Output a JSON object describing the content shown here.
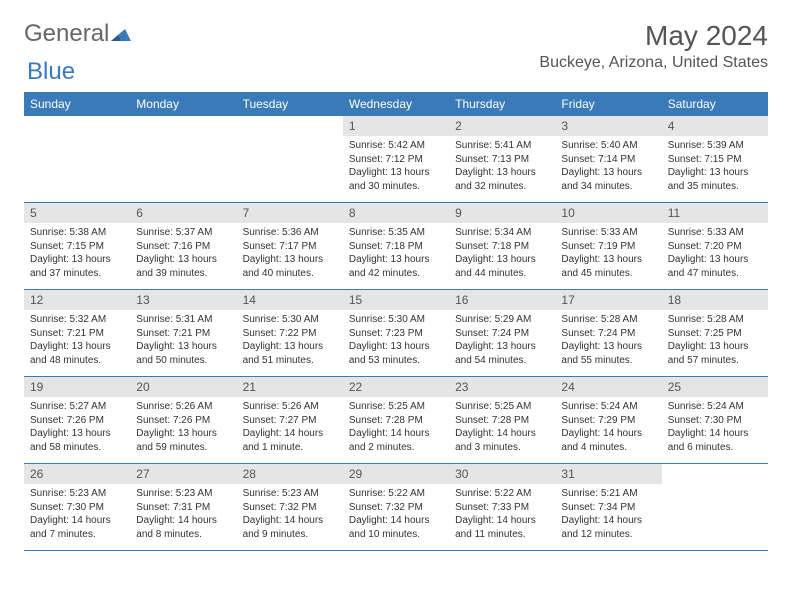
{
  "logo": {
    "part1": "General",
    "part2": "Blue"
  },
  "title": "May 2024",
  "location": "Buckeye, Arizona, United States",
  "headers": [
    "Sunday",
    "Monday",
    "Tuesday",
    "Wednesday",
    "Thursday",
    "Friday",
    "Saturday"
  ],
  "colors": {
    "header_bg": "#3a7ab8",
    "header_text": "#ffffff",
    "daynum_bg": "#e5e5e5",
    "text": "#333333",
    "border": "#3a7ab8"
  },
  "weeks": [
    [
      null,
      null,
      null,
      {
        "num": "1",
        "sunrise": "5:42 AM",
        "sunset": "7:12 PM",
        "daylight": "13 hours and 30 minutes."
      },
      {
        "num": "2",
        "sunrise": "5:41 AM",
        "sunset": "7:13 PM",
        "daylight": "13 hours and 32 minutes."
      },
      {
        "num": "3",
        "sunrise": "5:40 AM",
        "sunset": "7:14 PM",
        "daylight": "13 hours and 34 minutes."
      },
      {
        "num": "4",
        "sunrise": "5:39 AM",
        "sunset": "7:15 PM",
        "daylight": "13 hours and 35 minutes."
      }
    ],
    [
      {
        "num": "5",
        "sunrise": "5:38 AM",
        "sunset": "7:15 PM",
        "daylight": "13 hours and 37 minutes."
      },
      {
        "num": "6",
        "sunrise": "5:37 AM",
        "sunset": "7:16 PM",
        "daylight": "13 hours and 39 minutes."
      },
      {
        "num": "7",
        "sunrise": "5:36 AM",
        "sunset": "7:17 PM",
        "daylight": "13 hours and 40 minutes."
      },
      {
        "num": "8",
        "sunrise": "5:35 AM",
        "sunset": "7:18 PM",
        "daylight": "13 hours and 42 minutes."
      },
      {
        "num": "9",
        "sunrise": "5:34 AM",
        "sunset": "7:18 PM",
        "daylight": "13 hours and 44 minutes."
      },
      {
        "num": "10",
        "sunrise": "5:33 AM",
        "sunset": "7:19 PM",
        "daylight": "13 hours and 45 minutes."
      },
      {
        "num": "11",
        "sunrise": "5:33 AM",
        "sunset": "7:20 PM",
        "daylight": "13 hours and 47 minutes."
      }
    ],
    [
      {
        "num": "12",
        "sunrise": "5:32 AM",
        "sunset": "7:21 PM",
        "daylight": "13 hours and 48 minutes."
      },
      {
        "num": "13",
        "sunrise": "5:31 AM",
        "sunset": "7:21 PM",
        "daylight": "13 hours and 50 minutes."
      },
      {
        "num": "14",
        "sunrise": "5:30 AM",
        "sunset": "7:22 PM",
        "daylight": "13 hours and 51 minutes."
      },
      {
        "num": "15",
        "sunrise": "5:30 AM",
        "sunset": "7:23 PM",
        "daylight": "13 hours and 53 minutes."
      },
      {
        "num": "16",
        "sunrise": "5:29 AM",
        "sunset": "7:24 PM",
        "daylight": "13 hours and 54 minutes."
      },
      {
        "num": "17",
        "sunrise": "5:28 AM",
        "sunset": "7:24 PM",
        "daylight": "13 hours and 55 minutes."
      },
      {
        "num": "18",
        "sunrise": "5:28 AM",
        "sunset": "7:25 PM",
        "daylight": "13 hours and 57 minutes."
      }
    ],
    [
      {
        "num": "19",
        "sunrise": "5:27 AM",
        "sunset": "7:26 PM",
        "daylight": "13 hours and 58 minutes."
      },
      {
        "num": "20",
        "sunrise": "5:26 AM",
        "sunset": "7:26 PM",
        "daylight": "13 hours and 59 minutes."
      },
      {
        "num": "21",
        "sunrise": "5:26 AM",
        "sunset": "7:27 PM",
        "daylight": "14 hours and 1 minute."
      },
      {
        "num": "22",
        "sunrise": "5:25 AM",
        "sunset": "7:28 PM",
        "daylight": "14 hours and 2 minutes."
      },
      {
        "num": "23",
        "sunrise": "5:25 AM",
        "sunset": "7:28 PM",
        "daylight": "14 hours and 3 minutes."
      },
      {
        "num": "24",
        "sunrise": "5:24 AM",
        "sunset": "7:29 PM",
        "daylight": "14 hours and 4 minutes."
      },
      {
        "num": "25",
        "sunrise": "5:24 AM",
        "sunset": "7:30 PM",
        "daylight": "14 hours and 6 minutes."
      }
    ],
    [
      {
        "num": "26",
        "sunrise": "5:23 AM",
        "sunset": "7:30 PM",
        "daylight": "14 hours and 7 minutes."
      },
      {
        "num": "27",
        "sunrise": "5:23 AM",
        "sunset": "7:31 PM",
        "daylight": "14 hours and 8 minutes."
      },
      {
        "num": "28",
        "sunrise": "5:23 AM",
        "sunset": "7:32 PM",
        "daylight": "14 hours and 9 minutes."
      },
      {
        "num": "29",
        "sunrise": "5:22 AM",
        "sunset": "7:32 PM",
        "daylight": "14 hours and 10 minutes."
      },
      {
        "num": "30",
        "sunrise": "5:22 AM",
        "sunset": "7:33 PM",
        "daylight": "14 hours and 11 minutes."
      },
      {
        "num": "31",
        "sunrise": "5:21 AM",
        "sunset": "7:34 PM",
        "daylight": "14 hours and 12 minutes."
      },
      null
    ]
  ]
}
